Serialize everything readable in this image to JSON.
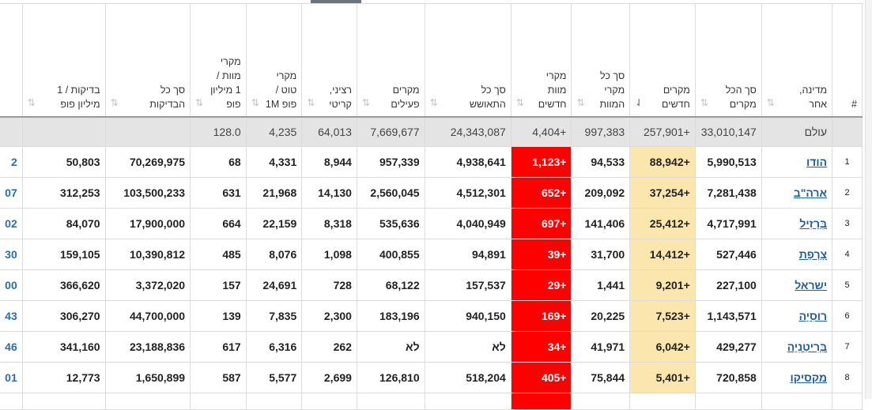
{
  "headers": {
    "num": "#",
    "country": "מדינה, אחר",
    "total_cases": "סך הכל מקרים",
    "new_cases": "מקרים חדשים",
    "total_deaths": "סך כל מקרי המוות",
    "new_deaths": "מקרי מוות חדשים",
    "total_recovered": "סך כל התאושש",
    "active_cases": "מקרים פעילים",
    "serious": "רציני, קריטי",
    "cases_per_1m": "מקרי טוט / פופ 1M",
    "deaths_per_1m": "מקרי מוות / 1 מיליון פופ",
    "total_tests": "סך כל הבדיקות",
    "tests_per_1m": "בדיקות / 1 מיליון פופ"
  },
  "sort_icon": "⇅",
  "sort_active_icon": "⇃",
  "world": {
    "country": "עולם",
    "total_cases": "33,010,147",
    "new_cases": "+257,901",
    "total_deaths": "997,383",
    "new_deaths": "+4,404",
    "total_recovered": "24,343,087",
    "active_cases": "7,669,677",
    "serious": "64,013",
    "cases_per_1m": "4,235",
    "deaths_per_1m": "128.0",
    "total_tests": "",
    "tests_per_1m": ""
  },
  "rows": [
    {
      "num": "1",
      "country": "הודו",
      "total_cases": "5,990,513",
      "new_cases": "+88,942",
      "total_deaths": "94,533",
      "new_deaths": "+1,123",
      "total_recovered": "4,938,641",
      "active_cases": "957,339",
      "serious": "8,944",
      "cases_per_1m": "4,331",
      "deaths_per_1m": "68",
      "total_tests": "70,269,975",
      "tests_per_1m": "50,803",
      "partial": "2"
    },
    {
      "num": "2",
      "country": "ארה\"ב",
      "total_cases": "7,281,438",
      "new_cases": "+37,254",
      "total_deaths": "209,092",
      "new_deaths": "+652",
      "total_recovered": "4,512,301",
      "active_cases": "2,560,045",
      "serious": "14,130",
      "cases_per_1m": "21,968",
      "deaths_per_1m": "631",
      "total_tests": "103,500,233",
      "tests_per_1m": "312,253",
      "partial": "07"
    },
    {
      "num": "3",
      "country": "בְּרָזִיל",
      "total_cases": "4,717,991",
      "new_cases": "+25,412",
      "total_deaths": "141,406",
      "new_deaths": "+697",
      "total_recovered": "4,040,949",
      "active_cases": "535,636",
      "serious": "8,318",
      "cases_per_1m": "22,159",
      "deaths_per_1m": "664",
      "total_tests": "17,900,000",
      "tests_per_1m": "84,070",
      "partial": "02"
    },
    {
      "num": "4",
      "country": "צָרְפַת",
      "total_cases": "527,446",
      "new_cases": "+14,412",
      "total_deaths": "31,700",
      "new_deaths": "+39",
      "total_recovered": "94,891",
      "active_cases": "400,855",
      "serious": "1,098",
      "cases_per_1m": "8,076",
      "deaths_per_1m": "485",
      "total_tests": "10,390,812",
      "tests_per_1m": "159,105",
      "partial": "30"
    },
    {
      "num": "5",
      "country": "ישראל",
      "total_cases": "227,100",
      "new_cases": "+9,201",
      "total_deaths": "1,441",
      "new_deaths": "+29",
      "total_recovered": "157,537",
      "active_cases": "68,122",
      "serious": "728",
      "cases_per_1m": "24,691",
      "deaths_per_1m": "157",
      "total_tests": "3,372,020",
      "tests_per_1m": "366,620",
      "partial": "00"
    },
    {
      "num": "6",
      "country": "רוּסִיָה",
      "total_cases": "1,143,571",
      "new_cases": "+7,523",
      "total_deaths": "20,225",
      "new_deaths": "+169",
      "total_recovered": "940,150",
      "active_cases": "183,196",
      "serious": "2,300",
      "cases_per_1m": "7,835",
      "deaths_per_1m": "139",
      "total_tests": "44,700,000",
      "tests_per_1m": "306,270",
      "partial": "43"
    },
    {
      "num": "7",
      "country": "בְּרִיטַנִיָה",
      "total_cases": "429,277",
      "new_cases": "+6,042",
      "total_deaths": "41,971",
      "new_deaths": "+34",
      "total_recovered": "לא",
      "active_cases": "לא",
      "serious": "262",
      "cases_per_1m": "6,316",
      "deaths_per_1m": "617",
      "total_tests": "23,188,836",
      "tests_per_1m": "341,160",
      "partial": "46"
    },
    {
      "num": "8",
      "country": "מקסיקו",
      "total_cases": "720,858",
      "new_cases": "+5,401",
      "total_deaths": "75,844",
      "new_deaths": "+405",
      "total_recovered": "518,204",
      "active_cases": "126,810",
      "serious": "2,699",
      "cases_per_1m": "5,577",
      "deaths_per_1m": "587",
      "total_tests": "1,650,899",
      "tests_per_1m": "12,773",
      "partial": "01"
    }
  ]
}
